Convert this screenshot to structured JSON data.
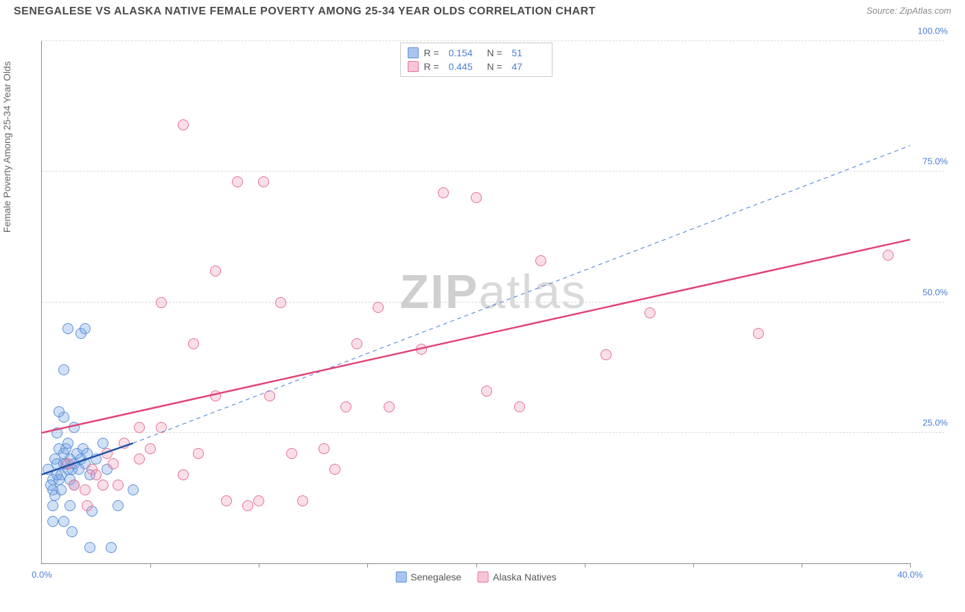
{
  "title": "SENEGALESE VS ALASKA NATIVE FEMALE POVERTY AMONG 25-34 YEAR OLDS CORRELATION CHART",
  "source": "Source: ZipAtlas.com",
  "watermark_bold": "ZIP",
  "watermark_rest": "atlas",
  "y_axis_label": "Female Poverty Among 25-34 Year Olds",
  "chart": {
    "type": "scatter",
    "background_color": "#ffffff",
    "grid_color": "#d8d8d8",
    "axis_color": "#888888",
    "label_color": "#4a7fd8",
    "xlim": [
      0,
      40
    ],
    "ylim": [
      0,
      100
    ],
    "xtick_step": 5,
    "ytick_step": 25,
    "xtick_labels": {
      "0": "0.0%",
      "40": "40.0%"
    },
    "ytick_labels": {
      "25": "25.0%",
      "50": "50.0%",
      "75": "75.0%",
      "100": "100.0%"
    },
    "point_radius": 8,
    "series": [
      {
        "name": "Senegalese",
        "fill": "rgba(120,165,230,0.35)",
        "stroke": "#5c8fd6",
        "swatch_fill": "#a8c5ef",
        "swatch_stroke": "#5c8fd6",
        "R": "0.154",
        "N": "51",
        "trend": {
          "x1": 0,
          "y1": 17,
          "x2": 4.2,
          "y2": 23,
          "color": "#1f4fa8",
          "width": 2.5,
          "dash": false
        },
        "trend_ext": {
          "x1": 4.2,
          "y1": 23,
          "x2": 40,
          "y2": 80,
          "color": "#5c8fd6",
          "width": 1.2,
          "dash": true
        },
        "points": [
          [
            0.3,
            18
          ],
          [
            0.5,
            16
          ],
          [
            0.6,
            20
          ],
          [
            0.7,
            19
          ],
          [
            0.8,
            22
          ],
          [
            0.5,
            14
          ],
          [
            0.9,
            17
          ],
          [
            1.0,
            21
          ],
          [
            1.1,
            19
          ],
          [
            0.4,
            15
          ],
          [
            1.2,
            18
          ],
          [
            0.6,
            13
          ],
          [
            1.3,
            20
          ],
          [
            0.8,
            16
          ],
          [
            1.0,
            19
          ],
          [
            1.4,
            18
          ],
          [
            0.5,
            11
          ],
          [
            0.7,
            17
          ],
          [
            1.5,
            19
          ],
          [
            1.1,
            22
          ],
          [
            1.6,
            21
          ],
          [
            0.9,
            14
          ],
          [
            1.2,
            23
          ],
          [
            1.8,
            20
          ],
          [
            1.0,
            28
          ],
          [
            1.7,
            18
          ],
          [
            2.0,
            19
          ],
          [
            1.3,
            16
          ],
          [
            1.9,
            22
          ],
          [
            2.2,
            17
          ],
          [
            2.1,
            21
          ],
          [
            2.5,
            20
          ],
          [
            1.5,
            15
          ],
          [
            2.3,
            10
          ],
          [
            2.8,
            23
          ],
          [
            3.0,
            18
          ],
          [
            0.5,
            8
          ],
          [
            1.4,
            6
          ],
          [
            2.2,
            3
          ],
          [
            3.2,
            3
          ],
          [
            3.5,
            11
          ],
          [
            4.2,
            14
          ],
          [
            1.2,
            45
          ],
          [
            1.8,
            44
          ],
          [
            2.0,
            45
          ],
          [
            1.0,
            37
          ],
          [
            0.8,
            29
          ],
          [
            0.7,
            25
          ],
          [
            1.5,
            26
          ],
          [
            1.0,
            8
          ],
          [
            1.3,
            11
          ]
        ]
      },
      {
        "name": "Alaska Natives",
        "fill": "rgba(240,150,175,0.30)",
        "stroke": "#e76f94",
        "swatch_fill": "#f7c6d4",
        "swatch_stroke": "#e76f94",
        "R": "0.445",
        "N": "47",
        "trend": {
          "x1": 0,
          "y1": 25,
          "x2": 40,
          "y2": 62,
          "color": "#e24277",
          "width": 2.5,
          "dash": false
        },
        "points": [
          [
            1.2,
            19
          ],
          [
            1.5,
            15
          ],
          [
            2.0,
            14
          ],
          [
            2.3,
            18
          ],
          [
            2.5,
            17
          ],
          [
            3.0,
            21
          ],
          [
            3.3,
            19
          ],
          [
            3.8,
            23
          ],
          [
            4.5,
            20
          ],
          [
            2.1,
            11
          ],
          [
            2.8,
            15
          ],
          [
            3.5,
            15
          ],
          [
            5.0,
            22
          ],
          [
            5.5,
            26
          ],
          [
            6.5,
            17
          ],
          [
            7.0,
            42
          ],
          [
            7.2,
            21
          ],
          [
            8.0,
            32
          ],
          [
            8.5,
            12
          ],
          [
            9.0,
            73
          ],
          [
            9.5,
            11
          ],
          [
            10.0,
            12
          ],
          [
            10.5,
            32
          ],
          [
            11.0,
            50
          ],
          [
            11.5,
            21
          ],
          [
            12.0,
            12
          ],
          [
            13.0,
            22
          ],
          [
            13.5,
            18
          ],
          [
            14.0,
            30
          ],
          [
            14.5,
            42
          ],
          [
            15.5,
            49
          ],
          [
            16.0,
            30
          ],
          [
            17.5,
            41
          ],
          [
            18.5,
            71
          ],
          [
            20.0,
            70
          ],
          [
            20.5,
            33
          ],
          [
            22.0,
            30
          ],
          [
            23.0,
            58
          ],
          [
            26.0,
            40
          ],
          [
            28.0,
            48
          ],
          [
            33.0,
            44
          ],
          [
            39.0,
            59
          ],
          [
            6.5,
            84
          ],
          [
            8.0,
            56
          ],
          [
            10.2,
            73
          ],
          [
            5.5,
            50
          ],
          [
            4.5,
            26
          ]
        ]
      }
    ]
  },
  "legend": {
    "series1": "Senegalese",
    "series2": "Alaska Natives"
  }
}
